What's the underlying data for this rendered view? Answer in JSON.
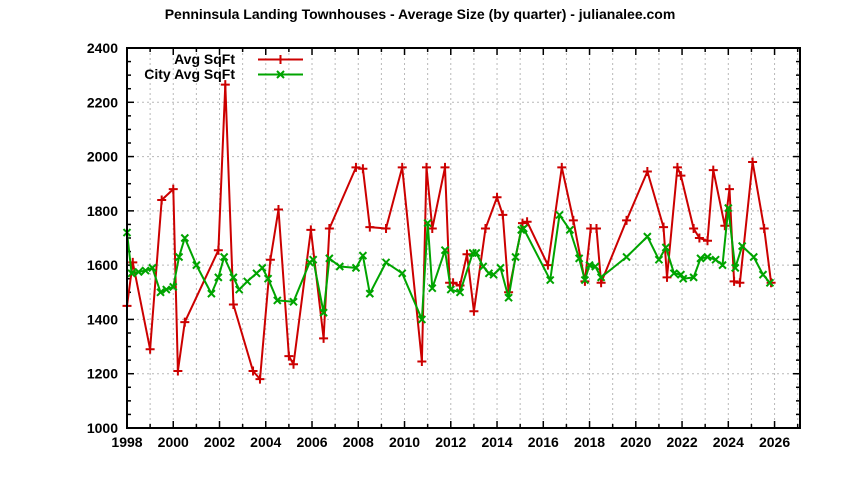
{
  "chart_data": {
    "type": "line",
    "title": "Penninsula Landing Townhouses - Average Size (by quarter) - julianalee.com",
    "xlabel": "",
    "ylabel": "",
    "xlim": [
      1998,
      2027.1
    ],
    "ylim": [
      1000,
      2400
    ],
    "x_ticks": [
      1998,
      2000,
      2002,
      2004,
      2006,
      2008,
      2010,
      2012,
      2014,
      2016,
      2018,
      2020,
      2022,
      2024,
      2026
    ],
    "y_ticks": [
      1000,
      1200,
      1400,
      1600,
      1800,
      2000,
      2200,
      2400
    ],
    "x_minor_step": 1,
    "y_minor_step": 50,
    "grid": true,
    "legend_position": "top-left-inside",
    "series": [
      {
        "name": "Avg SqFt",
        "color": "#cc0000",
        "marker": "plus",
        "points": [
          [
            1998.0,
            1450
          ],
          [
            1998.25,
            1610
          ],
          [
            1999.0,
            1290
          ],
          [
            1999.5,
            1840
          ],
          [
            2000.0,
            1880
          ],
          [
            2000.2,
            1210
          ],
          [
            2000.5,
            1390
          ],
          [
            2001.95,
            1655
          ],
          [
            2002.25,
            2265
          ],
          [
            2002.6,
            1455
          ],
          [
            2003.45,
            1210
          ],
          [
            2003.75,
            1180
          ],
          [
            2004.2,
            1620
          ],
          [
            2004.55,
            1805
          ],
          [
            2005.0,
            1265
          ],
          [
            2005.2,
            1235
          ],
          [
            2005.95,
            1730
          ],
          [
            2006.5,
            1330
          ],
          [
            2006.75,
            1735
          ],
          [
            2007.9,
            1960
          ],
          [
            2008.2,
            1955
          ],
          [
            2008.5,
            1740
          ],
          [
            2009.2,
            1735
          ],
          [
            2009.9,
            1960
          ],
          [
            2010.75,
            1245
          ],
          [
            2010.95,
            1960
          ],
          [
            2011.2,
            1735
          ],
          [
            2011.75,
            1960
          ],
          [
            2011.95,
            1535
          ],
          [
            2012.1,
            1535
          ],
          [
            2012.4,
            1525
          ],
          [
            2012.7,
            1640
          ],
          [
            2013.0,
            1430
          ],
          [
            2013.5,
            1735
          ],
          [
            2014.0,
            1850
          ],
          [
            2014.25,
            1785
          ],
          [
            2014.5,
            1500
          ],
          [
            2015.1,
            1755
          ],
          [
            2015.3,
            1760
          ],
          [
            2016.2,
            1600
          ],
          [
            2016.8,
            1960
          ],
          [
            2017.3,
            1765
          ],
          [
            2017.8,
            1540
          ],
          [
            2018.05,
            1735
          ],
          [
            2018.3,
            1735
          ],
          [
            2018.5,
            1535
          ],
          [
            2019.6,
            1765
          ],
          [
            2020.5,
            1945
          ],
          [
            2021.2,
            1740
          ],
          [
            2021.35,
            1555
          ],
          [
            2021.8,
            1960
          ],
          [
            2021.95,
            1930
          ],
          [
            2022.5,
            1735
          ],
          [
            2022.75,
            1700
          ],
          [
            2023.1,
            1690
          ],
          [
            2023.35,
            1950
          ],
          [
            2023.85,
            1745
          ],
          [
            2024.05,
            1880
          ],
          [
            2024.25,
            1540
          ],
          [
            2024.5,
            1535
          ],
          [
            2025.05,
            1980
          ],
          [
            2025.55,
            1735
          ],
          [
            2025.85,
            1535
          ]
        ]
      },
      {
        "name": "City Avg SqFt",
        "color": "#00a400",
        "marker": "cross",
        "points": [
          [
            1998.0,
            1720
          ],
          [
            1998.2,
            1570
          ],
          [
            1998.5,
            1575
          ],
          [
            1998.8,
            1580
          ],
          [
            1999.1,
            1590
          ],
          [
            1999.45,
            1500
          ],
          [
            1999.7,
            1510
          ],
          [
            2000.0,
            1520
          ],
          [
            2000.25,
            1630
          ],
          [
            2000.5,
            1700
          ],
          [
            2001.0,
            1600
          ],
          [
            2001.65,
            1495
          ],
          [
            2001.95,
            1555
          ],
          [
            2002.2,
            1630
          ],
          [
            2002.6,
            1555
          ],
          [
            2002.85,
            1510
          ],
          [
            2003.2,
            1540
          ],
          [
            2003.6,
            1570
          ],
          [
            2003.85,
            1590
          ],
          [
            2004.1,
            1550
          ],
          [
            2004.5,
            1470
          ],
          [
            2005.2,
            1465
          ],
          [
            2005.9,
            1610
          ],
          [
            2006.05,
            1620
          ],
          [
            2006.5,
            1425
          ],
          [
            2006.75,
            1625
          ],
          [
            2007.2,
            1595
          ],
          [
            2007.9,
            1590
          ],
          [
            2008.2,
            1635
          ],
          [
            2008.5,
            1495
          ],
          [
            2009.2,
            1610
          ],
          [
            2009.9,
            1570
          ],
          [
            2010.75,
            1400
          ],
          [
            2011.0,
            1755
          ],
          [
            2011.2,
            1515
          ],
          [
            2011.75,
            1655
          ],
          [
            2012.0,
            1510
          ],
          [
            2012.4,
            1500
          ],
          [
            2012.95,
            1645
          ],
          [
            2013.1,
            1645
          ],
          [
            2013.4,
            1595
          ],
          [
            2013.65,
            1570
          ],
          [
            2013.85,
            1565
          ],
          [
            2014.15,
            1590
          ],
          [
            2014.5,
            1480
          ],
          [
            2014.8,
            1630
          ],
          [
            2015.05,
            1730
          ],
          [
            2015.15,
            1735
          ],
          [
            2016.3,
            1545
          ],
          [
            2016.7,
            1785
          ],
          [
            2017.15,
            1730
          ],
          [
            2017.55,
            1625
          ],
          [
            2017.8,
            1545
          ],
          [
            2018.0,
            1600
          ],
          [
            2018.25,
            1595
          ],
          [
            2018.5,
            1555
          ],
          [
            2019.6,
            1630
          ],
          [
            2020.5,
            1705
          ],
          [
            2021.0,
            1620
          ],
          [
            2021.3,
            1665
          ],
          [
            2021.65,
            1570
          ],
          [
            2021.95,
            1565
          ],
          [
            2022.05,
            1550
          ],
          [
            2022.5,
            1555
          ],
          [
            2022.8,
            1625
          ],
          [
            2023.1,
            1630
          ],
          [
            2023.45,
            1620
          ],
          [
            2023.75,
            1600
          ],
          [
            2024.0,
            1810
          ],
          [
            2024.3,
            1590
          ],
          [
            2024.6,
            1670
          ],
          [
            2025.1,
            1630
          ],
          [
            2025.5,
            1565
          ],
          [
            2025.8,
            1535
          ]
        ]
      }
    ]
  }
}
